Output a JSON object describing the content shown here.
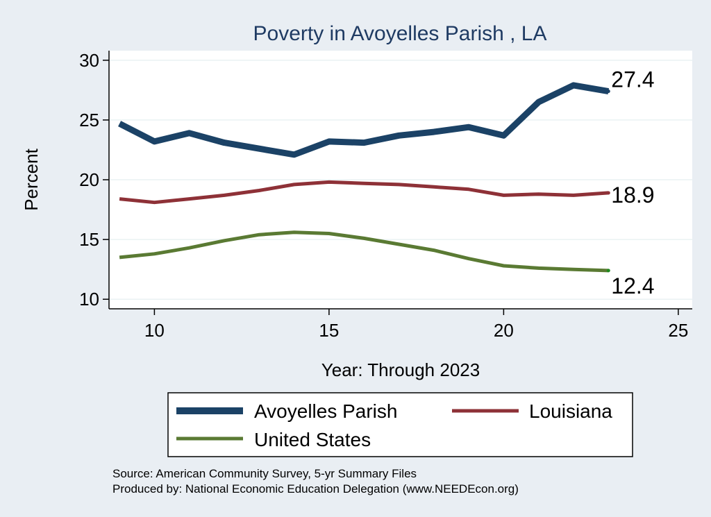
{
  "chart_data": {
    "type": "line",
    "title": "Poverty in Avoyelles Parish , LA",
    "xlabel": "Year: Through 2023",
    "ylabel": "Percent",
    "xlim": [
      8.7,
      25.4
    ],
    "ylim": [
      9.2,
      30.8
    ],
    "xticks": [
      10,
      15,
      20,
      25
    ],
    "yticks": [
      10,
      15,
      20,
      25,
      30
    ],
    "grid": true,
    "legend_position": "bottom",
    "series": [
      {
        "name": "Avoyelles Parish",
        "color": "#1b4266",
        "x": [
          9,
          10,
          11,
          12,
          13,
          14,
          15,
          16,
          17,
          18,
          19,
          20,
          21,
          22,
          23
        ],
        "values": [
          24.7,
          23.2,
          23.9,
          23.1,
          22.6,
          22.1,
          23.2,
          23.1,
          23.7,
          24.0,
          24.4,
          23.7,
          26.5,
          27.9,
          27.4
        ],
        "end_label": "27.4"
      },
      {
        "name": "Louisiana",
        "color": "#8e3137",
        "x": [
          9,
          10,
          11,
          12,
          13,
          14,
          15,
          16,
          17,
          18,
          19,
          20,
          21,
          22,
          23
        ],
        "values": [
          18.4,
          18.1,
          18.4,
          18.7,
          19.1,
          19.6,
          19.8,
          19.7,
          19.6,
          19.4,
          19.2,
          18.7,
          18.8,
          18.7,
          18.9
        ],
        "end_label": "18.9"
      },
      {
        "name": "United States",
        "color": "#5a7a33",
        "x": [
          9,
          10,
          11,
          12,
          13,
          14,
          15,
          16,
          17,
          18,
          19,
          20,
          21,
          22,
          23
        ],
        "values": [
          13.5,
          13.8,
          14.3,
          14.9,
          15.4,
          15.6,
          15.5,
          15.1,
          14.6,
          14.1,
          13.4,
          12.8,
          12.6,
          12.5,
          12.4
        ],
        "end_label": "12.4"
      }
    ],
    "notes": [
      "Source: American Community Survey, 5-yr Summary Files",
      "Produced by: National Economic Education Delegation (www.NEEDEcon.org)"
    ]
  }
}
